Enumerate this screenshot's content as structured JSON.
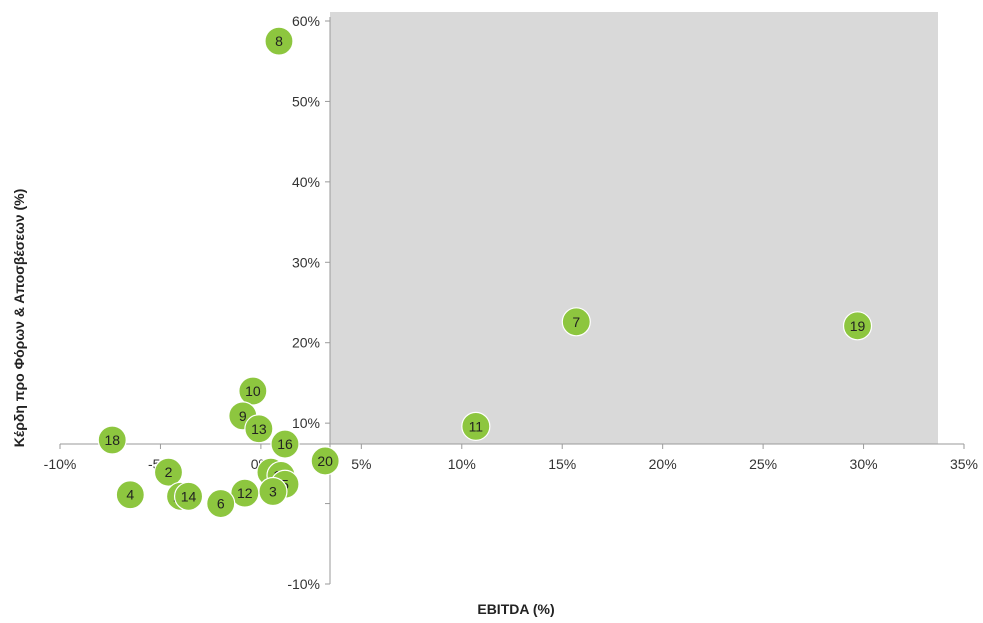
{
  "chart_data": {
    "type": "scatter",
    "xlabel": "EBITDA (%)",
    "ylabel": "Κέρδη προ Φόρων & Αποσβέσεων (%)",
    "xlim": [
      -10,
      35
    ],
    "ylim": [
      -10,
      60
    ],
    "x_ticks": [
      -10,
      -5,
      0,
      5,
      10,
      15,
      20,
      25,
      30,
      35
    ],
    "y_ticks": [
      -10,
      0,
      10,
      20,
      30,
      40,
      50,
      60
    ],
    "x_tick_labels": [
      "-10%",
      "-5%",
      "0%",
      "5%",
      "10%",
      "15%",
      "20%",
      "25%",
      "30%",
      "35%"
    ],
    "y_tick_labels": [
      "-10%",
      "",
      "10%",
      "20%",
      "30%",
      "40%",
      "50%",
      "60%"
    ],
    "highlight_region": {
      "x": [
        0,
        34
      ],
      "y": [
        0,
        61
      ],
      "color": "#d9d9d9"
    },
    "marker_color": "#8dc63f",
    "points": [
      {
        "label": "8",
        "x": 0.9,
        "y": 57.5
      },
      {
        "label": "7",
        "x": 15.7,
        "y": 22.6
      },
      {
        "label": "19",
        "x": 29.7,
        "y": 22.1
      },
      {
        "label": "10",
        "x": -0.4,
        "y": 14.0
      },
      {
        "label": "9",
        "x": -0.9,
        "y": 10.9
      },
      {
        "label": "13",
        "x": -0.1,
        "y": 9.3
      },
      {
        "label": "11",
        "x": 10.7,
        "y": 9.6
      },
      {
        "label": "16",
        "x": 1.2,
        "y": 7.4
      },
      {
        "label": "20",
        "x": 3.2,
        "y": 5.3
      },
      {
        "label": "18",
        "x": -7.4,
        "y": 7.9
      },
      {
        "label": "2",
        "x": -4.6,
        "y": 3.9
      },
      {
        "label": "1",
        "x": 0.5,
        "y": 3.9
      },
      {
        "label": "17",
        "x": 1.0,
        "y": 3.5
      },
      {
        "label": "5",
        "x": 1.2,
        "y": 2.4
      },
      {
        "label": "3",
        "x": 0.6,
        "y": 1.5
      },
      {
        "label": "4",
        "x": -6.5,
        "y": 1.1
      },
      {
        "label": "15",
        "x": -4.0,
        "y": 0.9
      },
      {
        "label": "14",
        "x": -3.6,
        "y": 0.9
      },
      {
        "label": "12",
        "x": -0.8,
        "y": 1.3
      },
      {
        "label": "6",
        "x": -2.0,
        "y": 0.0
      }
    ]
  }
}
